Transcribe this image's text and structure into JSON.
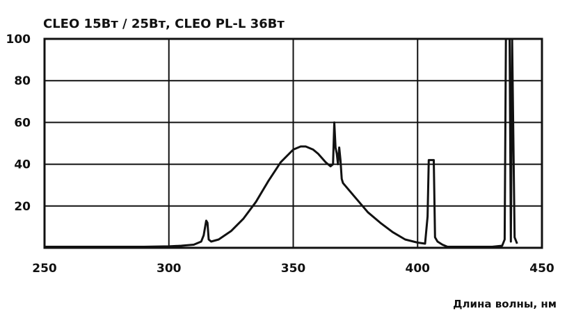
{
  "chart_data": {
    "type": "line",
    "title": "CLEO 15Вт / 25Вт, CLEO PL-L 36Вт",
    "xlabel": "Длина волны, нм",
    "ylabel": "",
    "xlim": [
      250,
      450
    ],
    "ylim": [
      0,
      100
    ],
    "x_ticks": [
      250,
      300,
      350,
      400,
      450
    ],
    "y_ticks": [
      20,
      40,
      60,
      80,
      100
    ],
    "grid": true,
    "series": [
      {
        "x": [
          250,
          290,
          300,
          305,
          310,
          313,
          314,
          315,
          315.5,
          316,
          317,
          320,
          325,
          330,
          335,
          340,
          345,
          350,
          353,
          355,
          358,
          360,
          363,
          365,
          366,
          366.5,
          367,
          367.5,
          368,
          368.5,
          369,
          369.5,
          370,
          375,
          380,
          385,
          390,
          395,
          400,
          403,
          404,
          404.5,
          405,
          406,
          406.5,
          407,
          408,
          410,
          412,
          420,
          430,
          434,
          435,
          435.5,
          436,
          437,
          437.5,
          438,
          439,
          440
        ],
        "y": [
          0.5,
          0.5,
          0.7,
          1,
          1.5,
          3,
          6,
          13,
          12,
          4,
          3,
          4,
          8,
          14,
          22,
          32,
          41,
          47,
          48.5,
          48.5,
          47,
          45,
          41,
          39,
          40,
          60,
          48,
          45,
          40,
          48,
          42,
          33,
          31,
          24,
          17,
          12,
          7.5,
          4,
          2.5,
          2,
          15,
          42,
          42,
          42,
          42,
          5,
          3,
          1.5,
          0.5,
          0.5,
          0.5,
          1,
          4,
          100,
          100,
          100,
          3,
          100,
          5,
          2
        ]
      }
    ]
  }
}
